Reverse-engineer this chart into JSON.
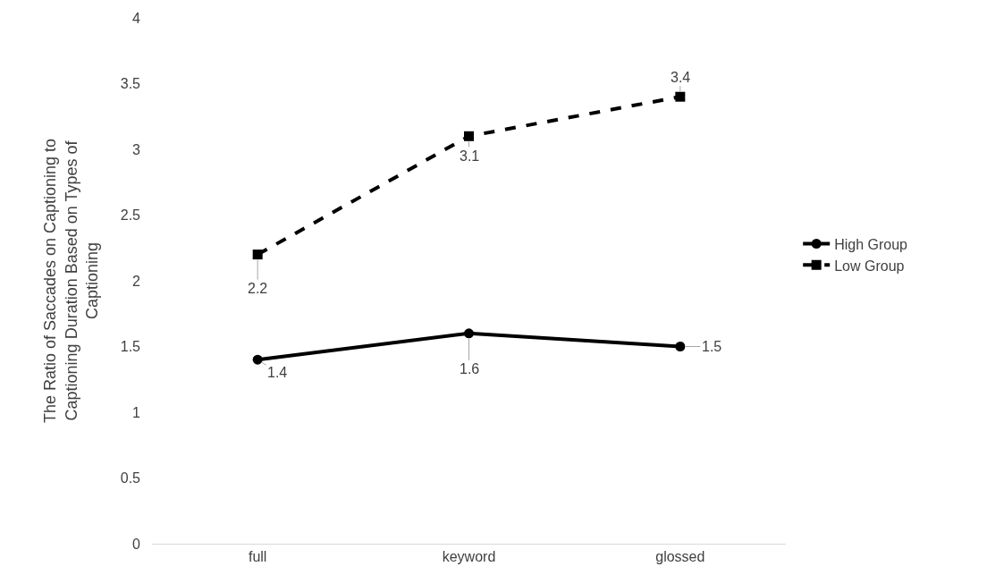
{
  "chart_data": {
    "type": "line",
    "ylabel": "The Ratio of Saccades on Captioning to Captioning Duration Based on Types of Captioning",
    "categories": [
      "full",
      "keyword",
      "glossed"
    ],
    "series": [
      {
        "name": "High Group",
        "color": "#000000",
        "values": [
          1.4,
          1.6,
          1.5
        ],
        "marker": "circle",
        "line_style": "solid"
      },
      {
        "name": "Low Group",
        "color": "#000000",
        "values": [
          2.2,
          3.1,
          3.4
        ],
        "marker": "square",
        "line_style": "dashed"
      }
    ],
    "ylim": [
      0,
      4
    ],
    "yticks": [
      0,
      0.5,
      1,
      1.5,
      2,
      2.5,
      3,
      3.5,
      4
    ],
    "grid": false,
    "legend": "right",
    "data_labels": true
  }
}
